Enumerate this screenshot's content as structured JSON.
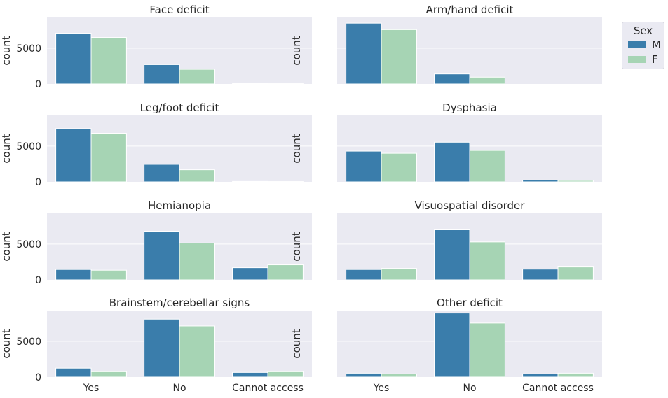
{
  "chart_data": {
    "type": "bar",
    "layout": "grid 4 rows x 2 columns, shared x and y axes",
    "categories": [
      "Yes",
      "No",
      "Cannot access"
    ],
    "ylabel": "count",
    "yticks": [
      0,
      5000
    ],
    "ylim": [
      0,
      9300
    ],
    "grid": true,
    "legend": {
      "title": "Sex",
      "placement": "outside top-right",
      "entries": [
        "M",
        "F"
      ]
    },
    "colors": {
      "M": "#3a7dab",
      "F": "#a6d4b4",
      "background": "#eaeaf2"
    },
    "panels": [
      {
        "title": "Face deficit",
        "series": [
          {
            "name": "M",
            "values": [
              7100,
              2700,
              60
            ]
          },
          {
            "name": "F",
            "values": [
              6500,
              2050,
              40
            ]
          }
        ]
      },
      {
        "title": "Arm/hand deficit",
        "series": [
          {
            "name": "M",
            "values": [
              8500,
              1400,
              0
            ]
          },
          {
            "name": "F",
            "values": [
              7600,
              950,
              0
            ]
          }
        ]
      },
      {
        "title": "Leg/foot deficit",
        "series": [
          {
            "name": "M",
            "values": [
              7450,
              2450,
              60
            ]
          },
          {
            "name": "F",
            "values": [
              6800,
              1700,
              40
            ]
          }
        ]
      },
      {
        "title": "Dysphasia",
        "series": [
          {
            "name": "M",
            "values": [
              4300,
              5550,
              250
            ]
          },
          {
            "name": "F",
            "values": [
              4000,
              4400,
              200
            ]
          }
        ]
      },
      {
        "title": "Hemianopia",
        "series": [
          {
            "name": "M",
            "values": [
              1450,
              6800,
              1700
            ]
          },
          {
            "name": "F",
            "values": [
              1350,
              5150,
              2100
            ]
          }
        ]
      },
      {
        "title": "Visuospatial disorder",
        "series": [
          {
            "name": "M",
            "values": [
              1450,
              7000,
              1500
            ]
          },
          {
            "name": "F",
            "values": [
              1600,
              5300,
              1800
            ]
          }
        ]
      },
      {
        "title": "Brainstem/cerebellar signs",
        "series": [
          {
            "name": "M",
            "values": [
              1250,
              8100,
              650
            ]
          },
          {
            "name": "F",
            "values": [
              750,
              7150,
              750
            ]
          }
        ]
      },
      {
        "title": "Other deficit",
        "series": [
          {
            "name": "M",
            "values": [
              550,
              8950,
              450
            ]
          },
          {
            "name": "F",
            "values": [
              450,
              7550,
              550
            ]
          }
        ]
      }
    ]
  }
}
